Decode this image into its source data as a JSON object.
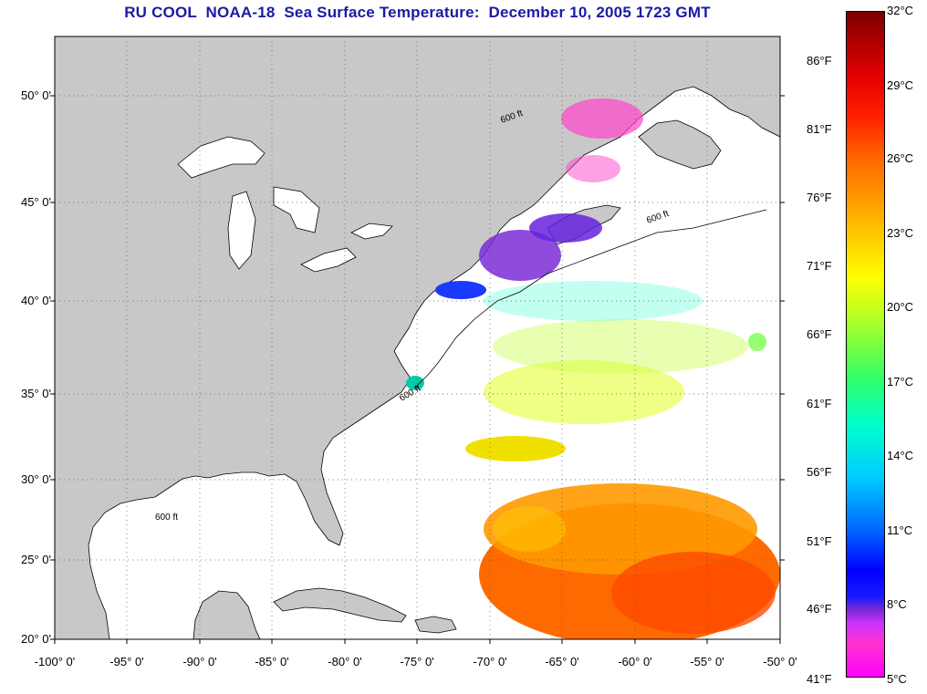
{
  "title": "RU COOL  NOAA-18  Sea Surface Temperature:  December 10, 2005 1723 GMT",
  "map": {
    "lon_range": [
      -100,
      -50
    ],
    "lat_range": [
      20,
      52.5
    ],
    "land_color": "#c8c8c8",
    "ocean_color": "#ffffff",
    "grid": "dotted",
    "lat_labels": [
      "50° 0'",
      "45° 0'",
      "40° 0'",
      "35° 0'",
      "30° 0'",
      "25° 0'",
      "20° 0'"
    ],
    "lon_labels": [
      "-100° 0'",
      "-95° 0'",
      "-90° 0'",
      "-85° 0'",
      "-80° 0'",
      "-75° 0'",
      "-70° 0'",
      "-65° 0'",
      "-60° 0'",
      "-55° 0'",
      "-50° 0'"
    ],
    "isobath_label": "600 ft"
  },
  "colorbar": {
    "celsius_labels": [
      "32°C",
      "29°C",
      "26°C",
      "23°C",
      "20°C",
      "17°C",
      "14°C",
      "11°C",
      "8°C",
      "5°C"
    ],
    "fahrenheit_labels": [
      "86°F",
      "81°F",
      "76°F",
      "71°F",
      "66°F",
      "61°F",
      "56°F",
      "51°F",
      "46°F",
      "41°F"
    ],
    "min_c": 5,
    "max_c": 32
  }
}
